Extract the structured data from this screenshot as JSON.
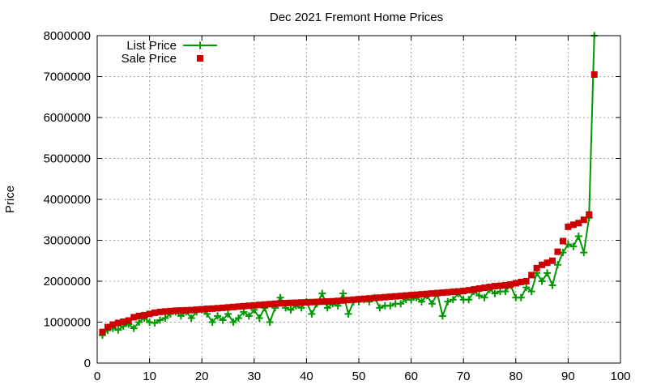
{
  "chart_data": {
    "type": "line",
    "title": "Dec 2021 Fremont Home Prices",
    "xlabel": "",
    "ylabel": "Price",
    "xlim": [
      0,
      100
    ],
    "ylim": [
      0,
      8000000
    ],
    "grid": true,
    "legend_position": "top-left",
    "xticks": [
      0,
      10,
      20,
      30,
      40,
      50,
      60,
      70,
      80,
      90,
      100
    ],
    "yticks": [
      0,
      1000000,
      2000000,
      3000000,
      4000000,
      5000000,
      6000000,
      7000000,
      8000000
    ],
    "x": [
      1,
      2,
      3,
      4,
      5,
      6,
      7,
      8,
      9,
      10,
      11,
      12,
      13,
      14,
      15,
      16,
      17,
      18,
      19,
      20,
      21,
      22,
      23,
      24,
      25,
      26,
      27,
      28,
      29,
      30,
      31,
      32,
      33,
      34,
      35,
      36,
      37,
      38,
      39,
      40,
      41,
      42,
      43,
      44,
      45,
      46,
      47,
      48,
      49,
      50,
      51,
      52,
      53,
      54,
      55,
      56,
      57,
      58,
      59,
      60,
      61,
      62,
      63,
      64,
      65,
      66,
      67,
      68,
      69,
      70,
      71,
      72,
      73,
      74,
      75,
      76,
      77,
      78,
      79,
      80,
      81,
      82,
      83,
      84,
      85,
      86,
      87,
      88,
      89,
      90,
      91,
      92,
      93,
      94,
      95
    ],
    "series": [
      {
        "name": "List Price",
        "style": "linespoints",
        "marker": "plus",
        "color": "#009900",
        "values": [
          680000,
          800000,
          850000,
          810000,
          900000,
          950000,
          850000,
          1000000,
          1100000,
          1000000,
          980000,
          1050000,
          1100000,
          1200000,
          1250000,
          1150000,
          1250000,
          1100000,
          1250000,
          1300000,
          1200000,
          1000000,
          1150000,
          1050000,
          1200000,
          1000000,
          1100000,
          1250000,
          1150000,
          1300000,
          1100000,
          1350000,
          1000000,
          1350000,
          1600000,
          1350000,
          1300000,
          1400000,
          1350000,
          1500000,
          1200000,
          1450000,
          1700000,
          1350000,
          1450000,
          1400000,
          1700000,
          1200000,
          1500000,
          1500000,
          1550000,
          1500000,
          1600000,
          1350000,
          1400000,
          1400000,
          1450000,
          1450000,
          1550000,
          1550000,
          1600000,
          1500000,
          1650000,
          1450000,
          1700000,
          1150000,
          1500000,
          1550000,
          1700000,
          1550000,
          1550000,
          1750000,
          1650000,
          1600000,
          1800000,
          1700000,
          1750000,
          1750000,
          1900000,
          1600000,
          1600000,
          1850000,
          1750000,
          2200000,
          2000000,
          2200000,
          1900000,
          2400000,
          2700000,
          2900000,
          2850000,
          3100000,
          2700000,
          3550000,
          8000000
        ]
      },
      {
        "name": "Sale Price",
        "style": "points",
        "marker": "square",
        "color": "#cc0000",
        "values": [
          760000,
          880000,
          940000,
          980000,
          1010000,
          1040000,
          1120000,
          1150000,
          1170000,
          1200000,
          1230000,
          1250000,
          1260000,
          1270000,
          1280000,
          1285000,
          1290000,
          1295000,
          1305000,
          1315000,
          1325000,
          1330000,
          1340000,
          1350000,
          1360000,
          1370000,
          1380000,
          1390000,
          1400000,
          1410000,
          1420000,
          1430000,
          1440000,
          1450000,
          1460000,
          1465000,
          1470000,
          1475000,
          1480000,
          1485000,
          1490000,
          1495000,
          1500000,
          1505000,
          1510000,
          1520000,
          1530000,
          1540000,
          1550000,
          1560000,
          1570000,
          1580000,
          1590000,
          1600000,
          1610000,
          1620000,
          1630000,
          1640000,
          1650000,
          1660000,
          1670000,
          1680000,
          1690000,
          1700000,
          1710000,
          1720000,
          1730000,
          1740000,
          1750000,
          1760000,
          1780000,
          1800000,
          1820000,
          1840000,
          1860000,
          1880000,
          1890000,
          1900000,
          1920000,
          1950000,
          1980000,
          2000000,
          2150000,
          2320000,
          2400000,
          2450000,
          2500000,
          2720000,
          2980000,
          3330000,
          3380000,
          3420000,
          3500000,
          3630000,
          7050000
        ]
      }
    ]
  }
}
